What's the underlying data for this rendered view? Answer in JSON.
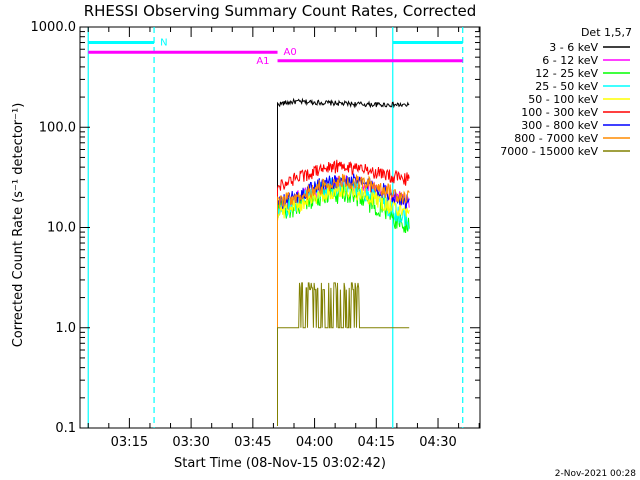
{
  "chart_data": {
    "type": "line",
    "title": "RHESSI Observing Summary Count Rates, Corrected",
    "xlabel": "Start Time (08-Nov-15 03:02:42)",
    "ylabel": "Corrected Count Rate (s⁻¹ detector⁻¹)",
    "ylog": true,
    "ylim": [
      0.1,
      1000
    ],
    "xlim_minutes": [
      3.05,
      4.67
    ],
    "y_ticks": [
      "0.1",
      "1.0",
      "10.0",
      "100.0",
      "1000.0"
    ],
    "x_ticks": [
      "03:15",
      "03:30",
      "03:45",
      "04:00",
      "04:15",
      "04:30"
    ],
    "legend_title": "Det 1,5,7",
    "timestamp": "2-Nov-2021 00:28",
    "series": [
      {
        "name": "3 - 6 keV",
        "color": "#000000",
        "start": "03:51",
        "end": "04:23",
        "values": [
          170,
          180,
          178,
          175,
          172,
          170,
          168,
          168,
          165
        ]
      },
      {
        "name": "6 - 12 keV",
        "color": "#ff00ff",
        "start": "03:51",
        "end": "04:23",
        "values": [
          16,
          19,
          22,
          26,
          28,
          27,
          24,
          21,
          17
        ]
      },
      {
        "name": "12 - 25 keV",
        "color": "#00ff00",
        "start": "03:51",
        "end": "04:23",
        "values": [
          14,
          16,
          19,
          22,
          23,
          21,
          17,
          13,
          10
        ]
      },
      {
        "name": "25 - 50 keV",
        "color": "#00ffff",
        "start": "03:51",
        "end": "04:23",
        "values": [
          15,
          17,
          21,
          25,
          26,
          24,
          20,
          15,
          12
        ]
      },
      {
        "name": "50 - 100 keV",
        "color": "#ffff00",
        "start": "03:51",
        "end": "04:23",
        "values": [
          14,
          16,
          19,
          22,
          24,
          22,
          19,
          16,
          14
        ]
      },
      {
        "name": "100 - 300 keV",
        "color": "#ff0000",
        "start": "03:51",
        "end": "04:23",
        "values": [
          26,
          30,
          35,
          40,
          41,
          38,
          35,
          32,
          30
        ]
      },
      {
        "name": "300 - 800 keV",
        "color": "#0000ff",
        "start": "03:51",
        "end": "04:23",
        "values": [
          17,
          20,
          24,
          28,
          30,
          28,
          25,
          21,
          18
        ]
      },
      {
        "name": "800 - 7000 keV",
        "color": "#ff8c00",
        "start": "03:51",
        "end": "04:23",
        "values": [
          17,
          20,
          23,
          27,
          29,
          28,
          26,
          22,
          20
        ]
      },
      {
        "name": "7000 - 15000 keV",
        "color": "#808000",
        "start": "03:51",
        "end": "04:23",
        "values": [
          1.0,
          2.0,
          2.5,
          2.8,
          2.4,
          2.0,
          1.0,
          1.0,
          1.0
        ]
      }
    ],
    "intervals": [
      {
        "label": "N",
        "color": "#00ffff",
        "level": 700,
        "segments": [
          [
            "03:05",
            "03:21"
          ],
          [
            "04:19",
            "04:36"
          ]
        ]
      },
      {
        "label": "A0",
        "color": "#ff00ff",
        "level": 560,
        "segments": [
          [
            "03:05",
            "03:51"
          ]
        ]
      },
      {
        "label": "A1",
        "color": "#ff00ff",
        "level": 460,
        "segments": [
          [
            "03:51",
            "04:36"
          ]
        ]
      }
    ],
    "vertical_lines": [
      {
        "time": "03:05",
        "color": "#00ffff",
        "style": "solid"
      },
      {
        "time": "03:21",
        "color": "#00ffff",
        "style": "dashed"
      },
      {
        "time": "04:19",
        "color": "#00ffff",
        "style": "solid"
      },
      {
        "time": "04:36",
        "color": "#00ffff",
        "style": "dashed"
      }
    ]
  }
}
